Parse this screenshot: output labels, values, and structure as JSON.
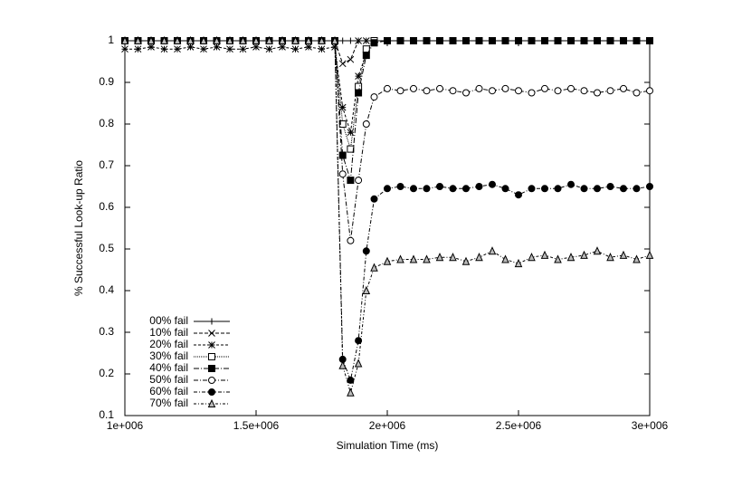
{
  "chart_data": {
    "type": "line",
    "xlabel": "Simulation Time (ms)",
    "ylabel": "% Successful Look-up Ratio",
    "x": [
      1000000,
      1050000,
      1100000,
      1150000,
      1200000,
      1250000,
      1300000,
      1350000,
      1400000,
      1450000,
      1500000,
      1550000,
      1600000,
      1650000,
      1700000,
      1750000,
      1800000,
      1830000,
      1860000,
      1890000,
      1920000,
      1950000,
      2000000,
      2050000,
      2100000,
      2150000,
      2200000,
      2250000,
      2300000,
      2350000,
      2400000,
      2450000,
      2500000,
      2550000,
      2600000,
      2650000,
      2700000,
      2750000,
      2800000,
      2850000,
      2900000,
      2950000,
      3000000
    ],
    "xlim": [
      1000000,
      3000000
    ],
    "xticks": [
      {
        "value": 1000000,
        "label": "1e+006"
      },
      {
        "value": 1500000,
        "label": "1.5e+006"
      },
      {
        "value": 2000000,
        "label": "2e+006"
      },
      {
        "value": 2500000,
        "label": "2.5e+006"
      },
      {
        "value": 3000000,
        "label": "3e+006"
      }
    ],
    "ylim": [
      0.1,
      1
    ],
    "yticks": [
      0.1,
      0.2,
      0.3,
      0.4,
      0.5,
      0.6,
      0.7,
      0.8,
      0.9,
      1
    ],
    "legend": "lower left",
    "series": [
      {
        "name": "00% fail",
        "color": "#000000",
        "marker": "plus",
        "dash": "none",
        "values": [
          1,
          1,
          1,
          1,
          1,
          1,
          1,
          1,
          1,
          1,
          1,
          1,
          1,
          1,
          1,
          1,
          1,
          1,
          1,
          1,
          1,
          1,
          1,
          1,
          1,
          1,
          1,
          1,
          1,
          1,
          1,
          1,
          1,
          1,
          1,
          1,
          1,
          1,
          1,
          1,
          1,
          1,
          1
        ]
      },
      {
        "name": "10% fail",
        "color": "#000000",
        "marker": "cross",
        "dash": "4,2",
        "values": [
          1,
          1,
          1,
          1,
          1,
          1,
          1,
          1,
          1,
          1,
          1,
          1,
          1,
          1,
          1,
          1,
          1,
          0.945,
          0.955,
          1,
          1,
          1,
          1,
          1,
          1,
          1,
          1,
          1,
          1,
          1,
          1,
          1,
          1,
          1,
          1,
          1,
          1,
          1,
          1,
          1,
          1,
          1,
          1
        ]
      },
      {
        "name": "20% fail",
        "color": "#000000",
        "marker": "star",
        "dash": "3,2",
        "values": [
          0.98,
          0.98,
          0.985,
          0.98,
          0.98,
          0.985,
          0.98,
          0.985,
          0.98,
          0.98,
          0.985,
          0.98,
          0.985,
          0.98,
          0.985,
          0.98,
          0.985,
          0.84,
          0.78,
          0.915,
          0.97,
          1,
          1,
          1,
          1,
          1,
          1,
          1,
          1,
          1,
          1,
          1,
          1,
          1,
          1,
          1,
          1,
          1,
          1,
          1,
          1,
          1,
          1
        ]
      },
      {
        "name": "30% fail",
        "color": "#000000",
        "marker": "square-open",
        "dash": "1,1",
        "values": [
          1,
          1,
          1,
          1,
          1,
          1,
          1,
          1,
          1,
          1,
          1,
          1,
          1,
          1,
          1,
          1,
          1,
          0.8,
          0.74,
          0.89,
          0.98,
          1,
          1,
          1,
          1,
          1,
          1,
          1,
          1,
          1,
          1,
          1,
          1,
          1,
          1,
          1,
          1,
          1,
          1,
          1,
          1,
          1,
          1
        ]
      },
      {
        "name": "40% fail",
        "color": "#000000",
        "marker": "square",
        "dash": "6,2,1,2",
        "values": [
          1,
          1,
          1,
          1,
          1,
          1,
          1,
          1,
          1,
          1,
          1,
          1,
          1,
          1,
          1,
          1,
          1,
          0.725,
          0.665,
          0.875,
          0.965,
          0.995,
          1,
          1,
          1,
          1,
          1,
          1,
          1,
          1,
          1,
          1,
          1,
          1,
          1,
          1,
          1,
          1,
          1,
          1,
          1,
          1,
          1
        ]
      },
      {
        "name": "50% fail",
        "color": "#000000",
        "marker": "circle-open",
        "dash": "5,2,1,2",
        "values": [
          1,
          1,
          1,
          1,
          1,
          1,
          1,
          1,
          1,
          1,
          1,
          1,
          1,
          1,
          1,
          1,
          1,
          0.68,
          0.52,
          0.665,
          0.8,
          0.865,
          0.885,
          0.88,
          0.885,
          0.88,
          0.885,
          0.88,
          0.875,
          0.885,
          0.88,
          0.885,
          0.88,
          0.875,
          0.885,
          0.88,
          0.885,
          0.88,
          0.875,
          0.88,
          0.885,
          0.875,
          0.88
        ]
      },
      {
        "name": "60% fail",
        "color": "#000000",
        "marker": "circle",
        "dash": "4,2,1,2",
        "values": [
          1,
          1,
          1,
          1,
          1,
          1,
          1,
          1,
          1,
          1,
          1,
          1,
          1,
          1,
          1,
          1,
          1,
          0.235,
          0.185,
          0.28,
          0.495,
          0.62,
          0.645,
          0.65,
          0.645,
          0.645,
          0.65,
          0.645,
          0.645,
          0.65,
          0.655,
          0.645,
          0.63,
          0.645,
          0.645,
          0.645,
          0.655,
          0.645,
          0.645,
          0.65,
          0.645,
          0.645,
          0.65
        ]
      },
      {
        "name": "70% fail",
        "color": "#000000",
        "marker": "triangle",
        "dash": "3,2,1,2",
        "values": [
          1,
          1,
          1,
          1,
          1,
          1,
          1,
          1,
          1,
          1,
          1,
          1,
          1,
          1,
          1,
          1,
          1,
          0.22,
          0.155,
          0.225,
          0.4,
          0.455,
          0.47,
          0.475,
          0.475,
          0.475,
          0.48,
          0.48,
          0.47,
          0.48,
          0.495,
          0.475,
          0.465,
          0.48,
          0.485,
          0.475,
          0.48,
          0.485,
          0.495,
          0.48,
          0.485,
          0.475,
          0.485
        ]
      }
    ]
  }
}
